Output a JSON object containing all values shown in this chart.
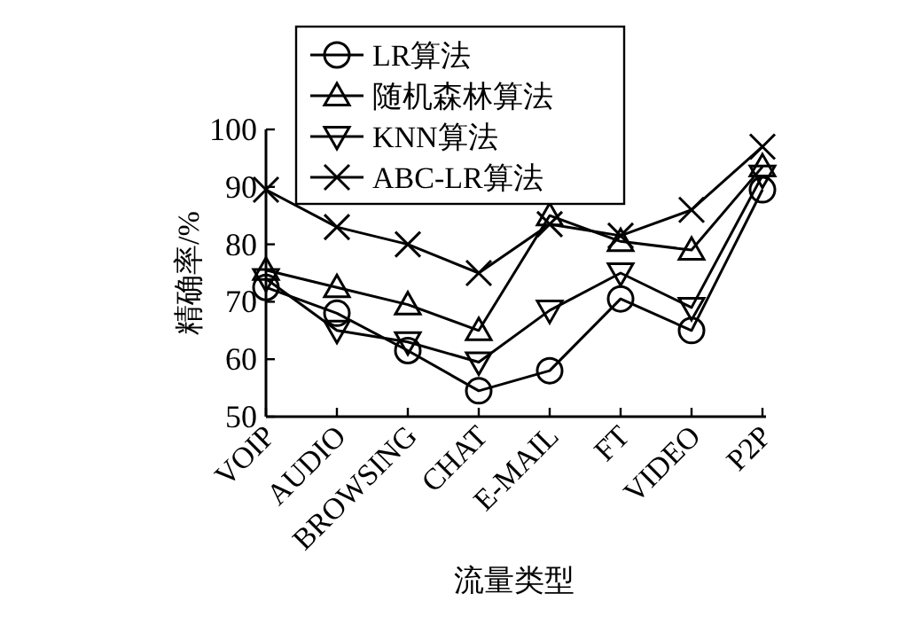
{
  "chart_data": {
    "type": "line",
    "xlabel": "流量类型",
    "ylabel": "精确率/%",
    "categories": [
      "VOIP",
      "AUDIO",
      "BROWSING",
      "CHAT",
      "E-MAIL",
      "FT",
      "VIDEO",
      "P2P"
    ],
    "series": [
      {
        "name": "LR算法",
        "color": "#000000",
        "marker": "circle",
        "values": [
          72.5,
          68,
          61.5,
          54.5,
          58,
          70.5,
          65,
          89.5
        ]
      },
      {
        "name": "随机森林算法",
        "color": "#000000",
        "marker": "triangle",
        "values": [
          75.5,
          72.5,
          69.5,
          65,
          85,
          80.5,
          79,
          93.5
        ]
      },
      {
        "name": "KNN算法",
        "color": "#000000",
        "marker": "triangle-down",
        "values": [
          74,
          65,
          63,
          59.5,
          68.5,
          75,
          69,
          92
        ]
      },
      {
        "name": "ABC-LR算法",
        "color": "#000000",
        "marker": "cross",
        "values": [
          89.5,
          83,
          80,
          75,
          83.5,
          81.5,
          86,
          97
        ]
      }
    ],
    "ylim": [
      50,
      100
    ],
    "yticks": [
      50,
      60,
      70,
      80,
      90,
      100
    ],
    "grid": false,
    "legend": "top",
    "line_style": "solid"
  }
}
